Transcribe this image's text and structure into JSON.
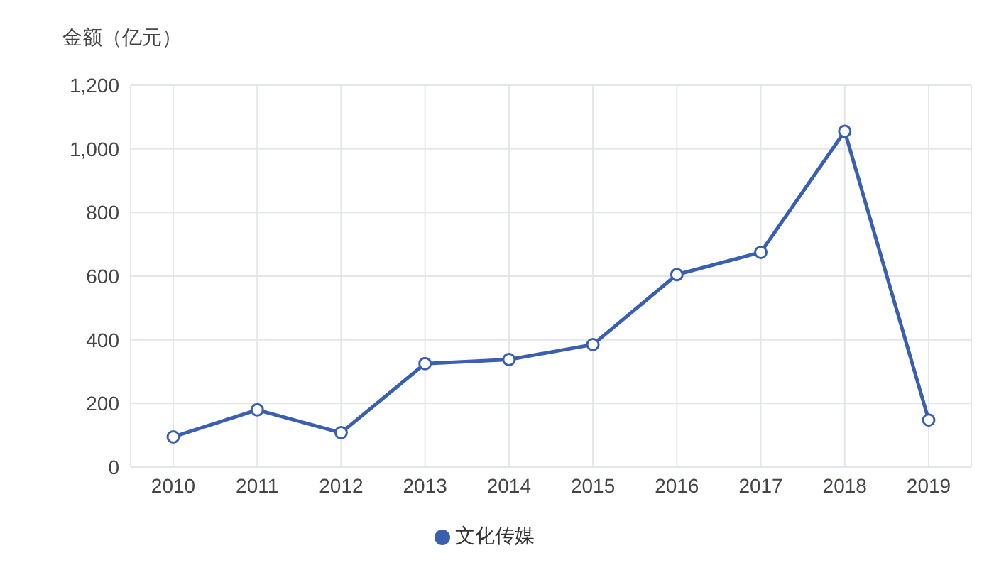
{
  "chart_data": {
    "type": "line",
    "ylabel": "金额（亿元）",
    "categories": [
      "2010",
      "2011",
      "2012",
      "2013",
      "2014",
      "2015",
      "2016",
      "2017",
      "2018",
      "2019"
    ],
    "series": [
      {
        "name": "文化传媒",
        "color": "#3a5fb0",
        "values": [
          95,
          180,
          108,
          325,
          338,
          385,
          605,
          675,
          1055,
          148
        ]
      }
    ],
    "ylim": [
      0,
      1200
    ],
    "yticks": [
      0,
      200,
      400,
      600,
      800,
      {
        "value": 1000,
        "label": "1,000"
      },
      {
        "value": 1200,
        "label": "1,200"
      }
    ],
    "grid": true,
    "legend": "bottom",
    "marker": "circle",
    "line_style": "solid"
  }
}
